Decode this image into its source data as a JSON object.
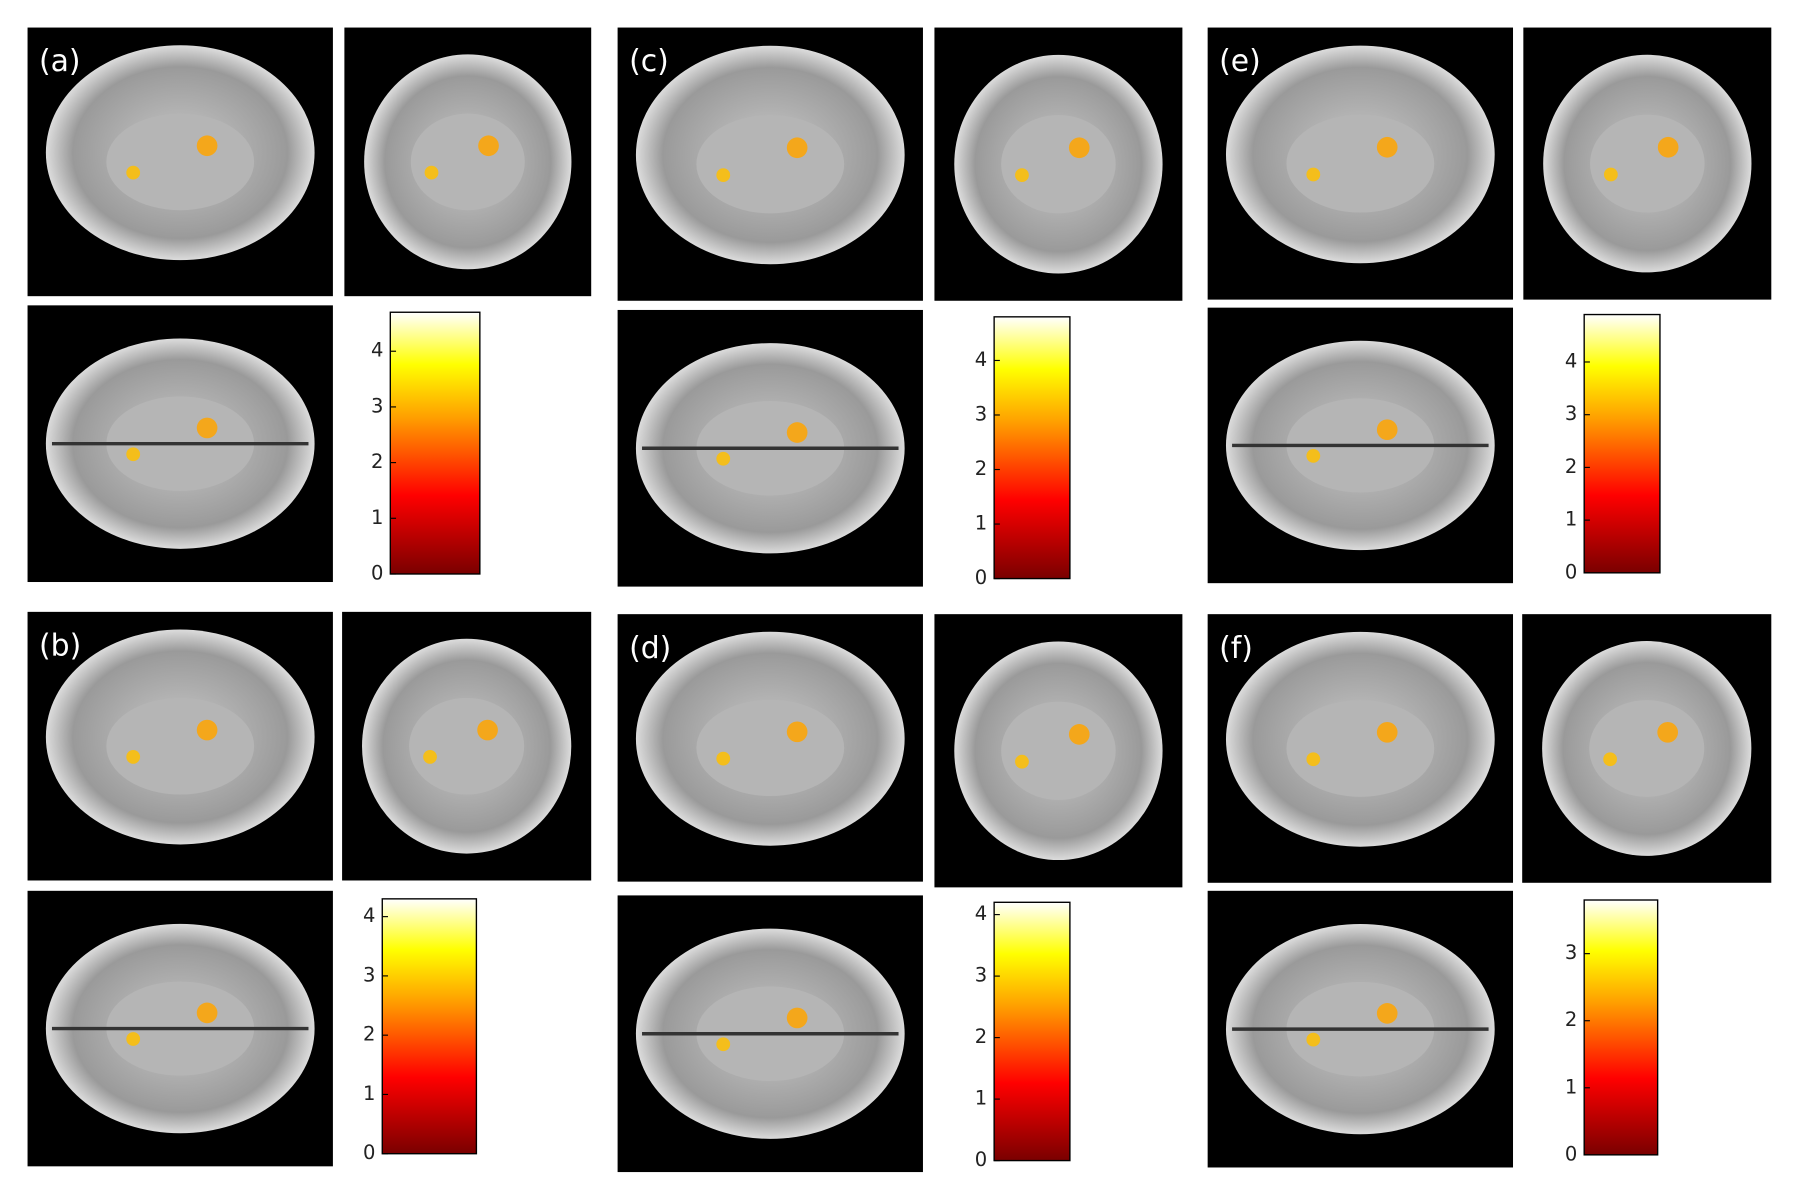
{
  "panels": [
    {
      "label": "(a)",
      "colorbar": {
        "ylim": [
          0,
          4.7
        ],
        "yticks": [
          0,
          1,
          2,
          3,
          4
        ]
      }
    },
    {
      "label": "(b)",
      "colorbar": {
        "ylim": [
          0,
          4.3
        ],
        "yticks": [
          0,
          1,
          2,
          3,
          4
        ]
      }
    },
    {
      "label": "(c)",
      "colorbar": {
        "ylim": [
          0,
          4.8
        ],
        "yticks": [
          0,
          1,
          2,
          3,
          4
        ]
      }
    },
    {
      "label": "(d)",
      "colorbar": {
        "ylim": [
          0,
          4.2
        ],
        "yticks": [
          0,
          1,
          2,
          3,
          4
        ]
      }
    },
    {
      "label": "(e)",
      "colorbar": {
        "ylim": [
          0,
          4.9
        ],
        "yticks": [
          0,
          1,
          2,
          3,
          4
        ]
      }
    },
    {
      "label": "(f)",
      "colorbar": {
        "ylim": [
          0,
          3.8
        ],
        "yticks": [
          0,
          1,
          2,
          3
        ]
      }
    }
  ]
}
